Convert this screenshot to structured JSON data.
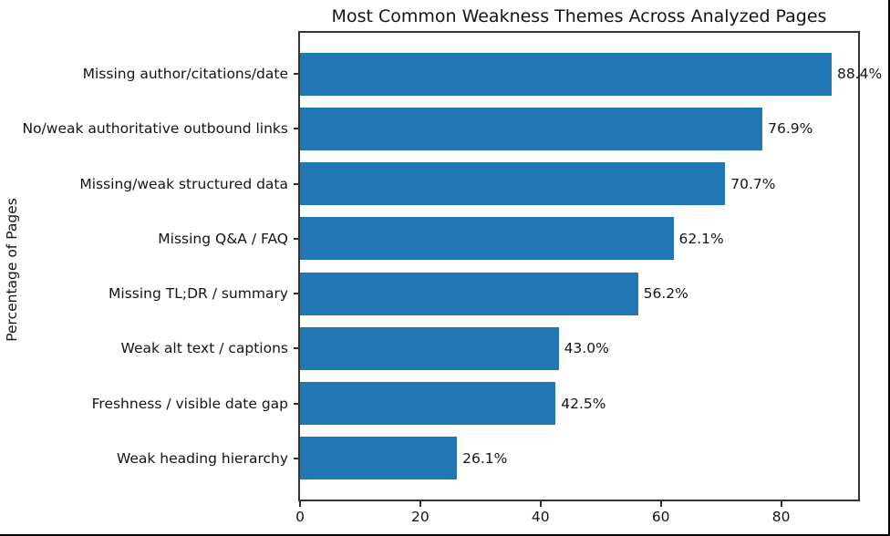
{
  "chart_data": {
    "type": "bar",
    "orientation": "horizontal",
    "title": "Most Common Weakness Themes Across Analyzed Pages",
    "ylabel": "Percentage of Pages",
    "xlabel": "",
    "categories": [
      "Missing author/citations/date",
      "No/weak authoritative outbound links",
      "Missing/weak structured data",
      "Missing Q&A / FAQ",
      "Missing TL;DR / summary",
      "Weak alt text / captions",
      "Freshness / visible date gap",
      "Weak heading hierarchy"
    ],
    "values": [
      88.4,
      76.9,
      70.7,
      62.1,
      56.2,
      43.0,
      42.5,
      26.1
    ],
    "value_labels": [
      "88.4%",
      "76.9%",
      "70.7%",
      "62.1%",
      "56.2%",
      "43.0%",
      "42.5%",
      "26.1%"
    ],
    "xticks": [
      0,
      20,
      40,
      60,
      80
    ],
    "xlim": [
      0,
      92.8
    ],
    "grid": false,
    "legend": null,
    "colors": {
      "bar": "#2077b4",
      "spine": "#333333",
      "text": "#141414"
    }
  }
}
